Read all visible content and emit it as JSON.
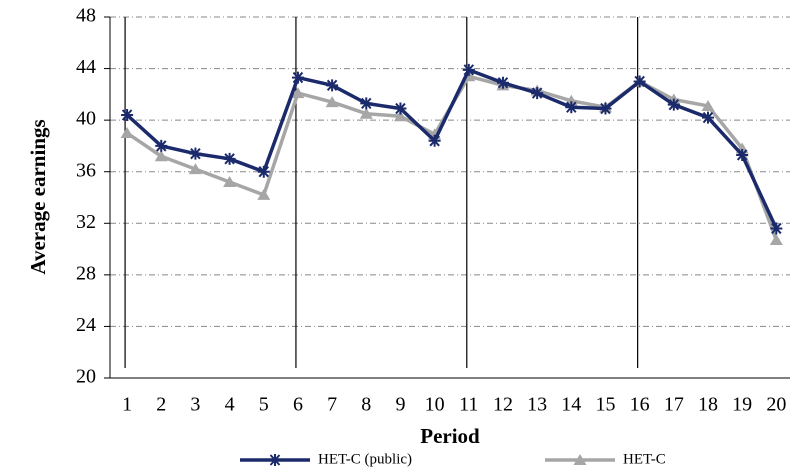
{
  "chart_data": {
    "type": "line",
    "x": [
      1,
      2,
      3,
      4,
      5,
      6,
      7,
      8,
      9,
      10,
      11,
      12,
      13,
      14,
      15,
      16,
      17,
      18,
      19,
      20
    ],
    "xlim": [
      0.5,
      20.4
    ],
    "xticks": [
      1,
      2,
      3,
      4,
      5,
      6,
      7,
      8,
      9,
      10,
      11,
      12,
      13,
      14,
      15,
      16,
      17,
      18,
      19,
      20
    ],
    "ylim": [
      20,
      48
    ],
    "yticks": [
      20,
      24,
      28,
      32,
      36,
      40,
      44,
      48
    ],
    "grid": true,
    "x_label": "Period",
    "y_label": "Average earnings",
    "vlines": [
      1,
      6,
      11,
      16
    ],
    "legend": "bottom",
    "series": [
      {
        "name": "HET-C (public)",
        "color": "#1b2a6b",
        "marker": "star",
        "values": [
          40.4,
          38.0,
          37.4,
          37.0,
          36.0,
          43.3,
          42.7,
          41.3,
          40.9,
          38.4,
          43.9,
          42.9,
          42.1,
          41.0,
          40.9,
          43.0,
          41.2,
          40.2,
          37.3,
          31.6
        ]
      },
      {
        "name": "HET-C",
        "color": "#a6a6a6",
        "marker": "triangle",
        "values": [
          39.0,
          37.2,
          36.2,
          35.2,
          34.2,
          42.1,
          41.4,
          40.5,
          40.3,
          38.9,
          43.4,
          42.7,
          42.3,
          41.5,
          41.0,
          43.0,
          41.6,
          41.1,
          37.8,
          30.7
        ]
      }
    ]
  }
}
